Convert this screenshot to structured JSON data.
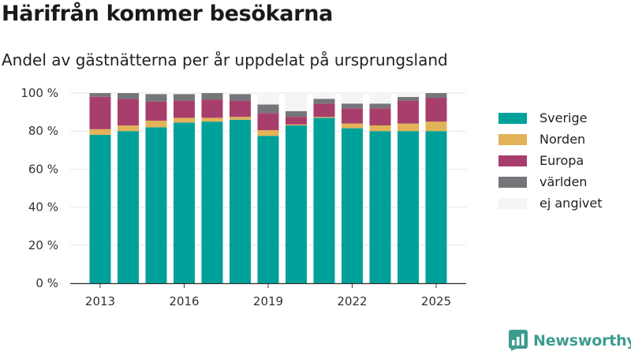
{
  "header": {
    "title": "Härifrån kommer besökarna",
    "subtitle": "Andel av gästnätterna per år uppdelat på ursprungsland"
  },
  "chart_data": {
    "type": "bar",
    "stacked": true,
    "categories": [
      "2013",
      "2014",
      "2015",
      "2016",
      "2017",
      "2018",
      "2019",
      "2020",
      "2021",
      "2022",
      "2023",
      "2024",
      "2025"
    ],
    "x_tick_labels": [
      "2013",
      "2016",
      "2019",
      "2022",
      "2025"
    ],
    "y_tick_labels": [
      "0 %",
      "20 %",
      "40 %",
      "60 %",
      "80 %",
      "100 %"
    ],
    "ylim": [
      0,
      100
    ],
    "series": [
      {
        "name": "Sverige",
        "color": "#00a19a",
        "values": [
          78,
          80,
          82,
          84.5,
          85,
          86,
          77.5,
          83,
          87,
          81.5,
          80,
          80,
          80
        ]
      },
      {
        "name": "Norden",
        "color": "#e2b358",
        "values": [
          3,
          3,
          3.5,
          2.5,
          2,
          1.5,
          3,
          0.5,
          0.5,
          2.5,
          3,
          4,
          5
        ]
      },
      {
        "name": "Europa",
        "color": "#a83e6b",
        "values": [
          17,
          14,
          10,
          9,
          9.5,
          8.5,
          9,
          4,
          7,
          8,
          9,
          12,
          12.5
        ]
      },
      {
        "name": "världen",
        "color": "#75767a",
        "values": [
          2,
          3,
          4,
          3.5,
          3.5,
          3.5,
          4.5,
          3,
          2.5,
          2.5,
          2.5,
          2,
          2.5
        ]
      },
      {
        "name": "ej angivet",
        "color": "#f5f5f5",
        "values": [
          0,
          0,
          0.5,
          0.5,
          0,
          0.5,
          6,
          9.5,
          3,
          5.5,
          5.5,
          2,
          0
        ]
      }
    ],
    "legend_position": "right",
    "grid": true
  },
  "brand": {
    "name": "Newsworthy",
    "color": "#3d9c8e"
  }
}
